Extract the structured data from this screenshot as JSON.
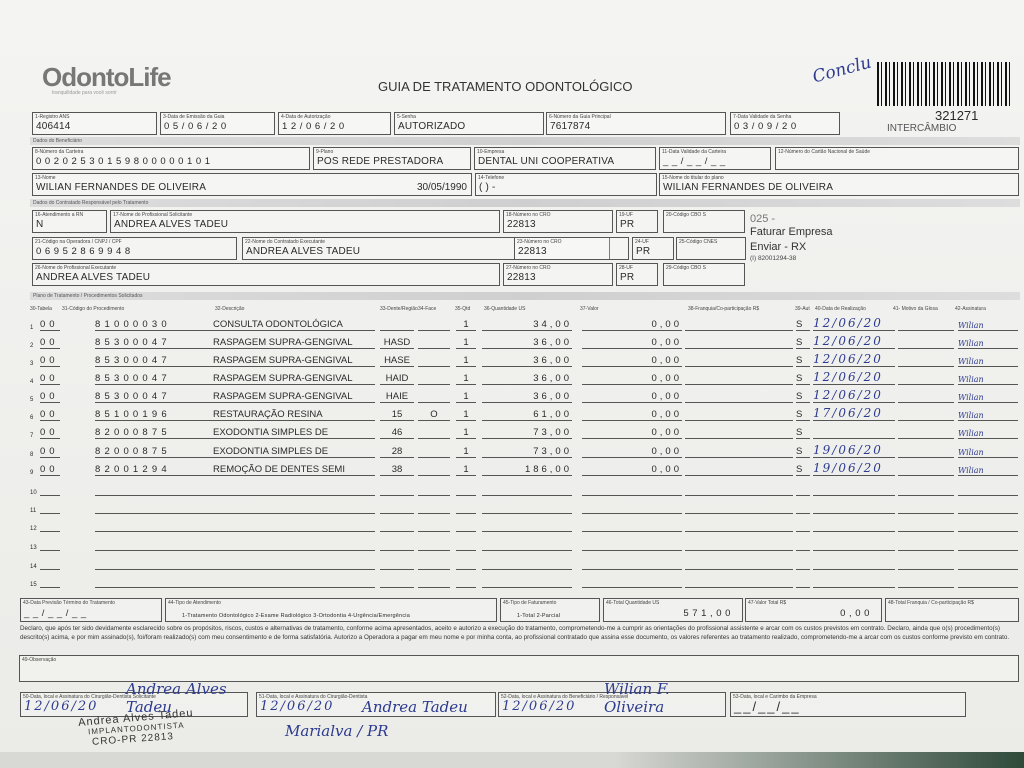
{
  "header": {
    "logo": "OdontoLife",
    "logo_tagline": "tranquilidade para você sorrir",
    "title": "GUIA DE TRATAMENTO ODONTOLÓGICO",
    "handwritten_note": "Conclu",
    "barcode_number": "321271",
    "barcode_caption": "INTERCÂMBIO"
  },
  "fields": {
    "f1": {
      "label": "1-Registro ANS",
      "value": "406414"
    },
    "f3": {
      "label": "3-Data de Emissão da Guia",
      "value": "05/06/20"
    },
    "f4": {
      "label": "4-Data de Autorização",
      "value": "12/06/20"
    },
    "f5": {
      "label": "5-Senha",
      "value": "AUTORIZADO"
    },
    "f6": {
      "label": "6-Número da Guia Principal",
      "value": "7617874"
    },
    "f7": {
      "label": "7-Data Validade da Senha",
      "value": "03/09/20"
    },
    "section_beneficiario": "Dados do Beneficiário",
    "f8": {
      "label": "8-Número da Carteira",
      "value": "00202530159800000101"
    },
    "f9": {
      "label": "9-Plano",
      "value": "POS REDE PRESTADORA"
    },
    "f10": {
      "label": "10-Empresa",
      "value": "DENTAL UNI  COOPERATIVA"
    },
    "f11": {
      "label": "11-Data Validade da Carteira",
      "value": "__/__/__"
    },
    "f12": {
      "label": "12-Número do Cartão Nacional de Saúde",
      "value": ""
    },
    "f13": {
      "label": "13-Nome",
      "value": "WILIAN FERNANDES DE OLIVEIRA",
      "birth": "30/05/1990"
    },
    "f14": {
      "label": "14-Telefone",
      "value": "(   )        -"
    },
    "f15": {
      "label": "15-Nome do titular do plano",
      "value": "WILIAN FERNANDES DE OLIVEIRA"
    },
    "section_contratado": "Dados do Contratado Responsável pelo Tratamento",
    "f16": {
      "label": "16-Atendimento a RN",
      "value": "N"
    },
    "f17": {
      "label": "17-Nome do Profissional Solicitante",
      "value": "ANDREA ALVES TADEU"
    },
    "f18": {
      "label": "18-Número no CRO",
      "value": "22813"
    },
    "f19": {
      "label": "19-UF",
      "value": "PR"
    },
    "f20": {
      "label": "20-Código CBO S",
      "value": ""
    },
    "f21": {
      "label": "21-Código na Operadora / CNPJ / CPF",
      "value": "06952869948"
    },
    "f22": {
      "label": "22-Nome do Contratado Executante",
      "value": "ANDREA ALVES TADEU"
    },
    "f23": {
      "label": "23-Número no CRO",
      "value": "22813"
    },
    "f24": {
      "label": "24-UF",
      "value": "PR"
    },
    "f25": {
      "label": "25-Código CNES",
      "value": ""
    },
    "f26": {
      "label": "26-Nome do Profissional Executante",
      "value": "ANDREA ALVES TADEU"
    },
    "f27": {
      "label": "27-Número no CRO",
      "value": "22813"
    },
    "f28": {
      "label": "28-UF",
      "value": "PR"
    },
    "f29": {
      "label": "29-Código CBO S",
      "value": ""
    },
    "notes": {
      "n1": "025 -",
      "n2": "Faturar Empresa",
      "n3": "Enviar - RX",
      "n4": "(I) 82001294-38"
    }
  },
  "plan": {
    "section": "Plano de Tratamento / Procedimentos Solicitados",
    "columns": [
      "30-Tabela",
      "31-Código do Procedimento",
      "32-Descrição",
      "33-Dente/Região",
      "34-Face",
      "35-Qtd",
      "36-Quantidade US",
      "37-Valor",
      "38-Franquia/Co-participação R$",
      "39-Aut",
      "40-Data de Realização",
      "41- Motivo da Glosa",
      "42-Assinatura"
    ],
    "rows": [
      {
        "n": "1",
        "tabela": "00",
        "code": "81000030",
        "desc": "CONSULTA ODONTOLÓGICA",
        "dente": "",
        "face": "",
        "qtd": "1",
        "us": "34,00",
        "valor": "0,00",
        "aut": "S",
        "date": "12/06/20",
        "sig": "Wilian"
      },
      {
        "n": "2",
        "tabela": "00",
        "code": "85300047",
        "desc": "RASPAGEM SUPRA-GENGIVAL",
        "dente": "HASD",
        "face": "",
        "qtd": "1",
        "us": "36,00",
        "valor": "0,00",
        "aut": "S",
        "date": "12/06/20",
        "sig": "Wilian"
      },
      {
        "n": "3",
        "tabela": "00",
        "code": "85300047",
        "desc": "RASPAGEM SUPRA-GENGIVAL",
        "dente": "HASE",
        "face": "",
        "qtd": "1",
        "us": "36,00",
        "valor": "0,00",
        "aut": "S",
        "date": "12/06/20",
        "sig": "Wilian"
      },
      {
        "n": "4",
        "tabela": "00",
        "code": "85300047",
        "desc": "RASPAGEM SUPRA-GENGIVAL",
        "dente": "HAID",
        "face": "",
        "qtd": "1",
        "us": "36,00",
        "valor": "0,00",
        "aut": "S",
        "date": "12/06/20",
        "sig": "Wilian"
      },
      {
        "n": "5",
        "tabela": "00",
        "code": "85300047",
        "desc": "RASPAGEM SUPRA-GENGIVAL",
        "dente": "HAIE",
        "face": "",
        "qtd": "1",
        "us": "36,00",
        "valor": "0,00",
        "aut": "S",
        "date": "12/06/20",
        "sig": "Wilian"
      },
      {
        "n": "6",
        "tabela": "00",
        "code": "85100196",
        "desc": "RESTAURAÇÃO RESINA",
        "dente": "15",
        "face": "O",
        "qtd": "1",
        "us": "61,00",
        "valor": "0,00",
        "aut": "S",
        "date": "17/06/20",
        "sig": "Wilian"
      },
      {
        "n": "7",
        "tabela": "00",
        "code": "82000875",
        "desc": "EXODONTIA SIMPLES DE",
        "dente": "46",
        "face": "",
        "qtd": "1",
        "us": "73,00",
        "valor": "0,00",
        "aut": "S",
        "date": "",
        "sig": "Wilian"
      },
      {
        "n": "8",
        "tabela": "00",
        "code": "82000875",
        "desc": "EXODONTIA SIMPLES DE",
        "dente": "28",
        "face": "",
        "qtd": "1",
        "us": "73,00",
        "valor": "0,00",
        "aut": "S",
        "date": "19/06/20",
        "sig": "Wilian"
      },
      {
        "n": "9",
        "tabela": "00",
        "code": "82001294",
        "desc": "REMOÇÃO DE DENTES SEMI",
        "dente": "38",
        "face": "",
        "qtd": "1",
        "us": "186,00",
        "valor": "0,00",
        "aut": "S",
        "date": "19/06/20",
        "sig": "Wilian"
      },
      {
        "n": "10"
      },
      {
        "n": "11"
      },
      {
        "n": "12"
      },
      {
        "n": "13"
      },
      {
        "n": "14"
      },
      {
        "n": "15"
      }
    ]
  },
  "totals": {
    "f43": {
      "label": "43-Data Previsão Término do Tratamento",
      "value": "__/__/__"
    },
    "f44": {
      "label": "44-Tipo de Atendimento",
      "value": "1-Tratamento Odontológico  2-Exame Radiológico  3-Ortodontia  4-Urgência/Emergência"
    },
    "f45": {
      "label": "45-Tipo de Faturamento",
      "value": "1-Total  2-Parcial"
    },
    "f46": {
      "label": "46-Total Quantidade US",
      "value": "571,00"
    },
    "f47": {
      "label": "47-Valor Total R$",
      "value": "0,00"
    },
    "f48": {
      "label": "48-Total Franquia / Co-participação R$",
      "value": ""
    }
  },
  "declaration": "Declaro, que após ter sido devidamente esclarecido sobre os propósitos, riscos, custos e alternativas de tratamento, conforme acima apresentados, aceito e autorizo a execução do tratamento, comprometendo-me a cumprir as orientações do profissional assistente e arcar com os custos previstos em contrato. Declaro, ainda que o(s) procedimento(s) descrito(s) acima, e por mim assinado(s), foi/foram realizado(s) com meu consentimento e de forma satisfatória. Autorizo a Operadora a pagar em meu nome e por minha conta, ao profissional contratado que assina esse documento, os valores referentes ao tratamento realizado, comprometendo-me a arcar com os custos conforme previsto em contrato.",
  "observacao": {
    "label": "49-Observação",
    "value": ""
  },
  "signatures": {
    "f50": {
      "label": "50-Data, local e Assinatura do Cirurgião-Dentista Solicitante",
      "date": "12/06/20",
      "sig": "Andrea Alves Tadeu",
      "stamp1": "Andrea Alves Tadeu",
      "stamp2": "IMPLANTODONTISTA",
      "stamp3": "CRO-PR 22813"
    },
    "f51": {
      "label": "51-Data, local e Assinatura do Cirurgião-Dentista",
      "date": "12/06/20",
      "sig": "Andrea Tadeu",
      "place": "Marialva / PR"
    },
    "f52": {
      "label": "52-Data, local e Assinatura do Beneficiário / Responsável",
      "date": "12/06/20",
      "sig": "Wilian F. Oliveira"
    },
    "f53": {
      "label": "53-Data, local e Carimbo da Empresa",
      "date": "__/__/__"
    }
  }
}
